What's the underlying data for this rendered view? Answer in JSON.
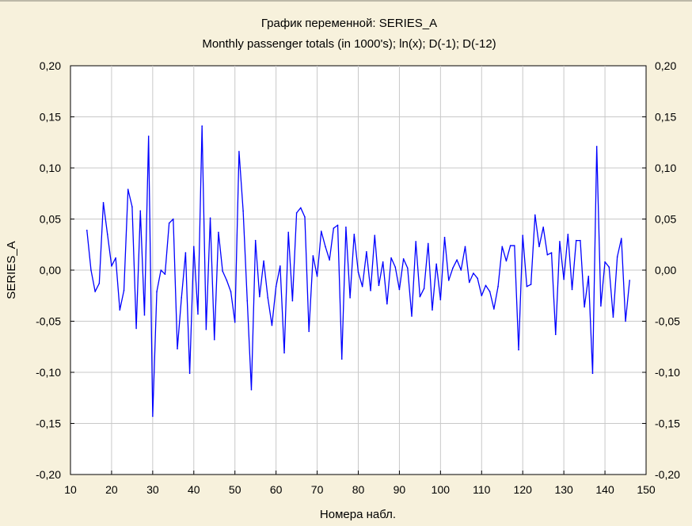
{
  "chart_data": {
    "type": "line",
    "title": "График переменной: SERIES_A",
    "subtitle": "Monthly passenger totals (in 1000's); ln(x); D(-1); D(-12)",
    "xlabel": "Номера набл.",
    "ylabel": "SERIES_A",
    "xlim": [
      10,
      150
    ],
    "ylim": [
      -0.2,
      0.2
    ],
    "x_ticks": [
      "10",
      "20",
      "30",
      "40",
      "50",
      "60",
      "70",
      "80",
      "90",
      "100",
      "110",
      "120",
      "130",
      "140",
      "150"
    ],
    "y_ticks": [
      "0,20",
      "0,15",
      "0,10",
      "0,05",
      "0,00",
      "-0,05",
      "-0,10",
      "-0,15",
      "-0,20"
    ],
    "y_tick_values": [
      0.2,
      0.15,
      0.1,
      0.05,
      0.0,
      -0.05,
      -0.1,
      -0.15,
      -0.2
    ],
    "grid": true,
    "line_color": "#0000ff",
    "background_color": "#ffffff",
    "x_start": 14,
    "series": [
      {
        "values": [
          0.039,
          0.0,
          -0.021,
          -0.013,
          0.066,
          0.035,
          0.004,
          0.012,
          -0.039,
          -0.02,
          0.079,
          0.062,
          -0.057,
          0.058,
          -0.044,
          0.131,
          -0.143,
          -0.021,
          0.0,
          -0.004,
          0.046,
          0.05,
          -0.077,
          -0.027,
          0.017,
          -0.101,
          0.023,
          -0.043,
          0.141,
          -0.058,
          0.051,
          -0.068,
          0.037,
          -0.001,
          -0.01,
          -0.021,
          -0.051,
          0.116,
          0.058,
          -0.03,
          -0.117,
          0.029,
          -0.026,
          0.009,
          -0.027,
          -0.054,
          -0.016,
          0.004,
          -0.081,
          0.037,
          -0.03,
          0.056,
          0.061,
          0.052,
          -0.06,
          0.014,
          -0.006,
          0.038,
          0.023,
          0.01,
          0.041,
          0.044,
          -0.087,
          0.042,
          -0.027,
          0.035,
          -0.002,
          -0.016,
          0.018,
          -0.02,
          0.034,
          -0.015,
          0.008,
          -0.033,
          0.012,
          0.003,
          -0.019,
          0.011,
          0.002,
          -0.045,
          0.028,
          -0.026,
          -0.018,
          0.026,
          -0.039,
          0.006,
          -0.029,
          0.032,
          -0.01,
          0.002,
          0.01,
          0.0,
          0.023,
          -0.012,
          -0.003,
          -0.008,
          -0.025,
          -0.015,
          -0.021,
          -0.038,
          -0.016,
          0.023,
          0.009,
          0.024,
          0.024,
          -0.078,
          0.034,
          -0.016,
          -0.014,
          0.054,
          0.023,
          0.042,
          0.015,
          0.017,
          -0.063,
          0.028,
          -0.009,
          0.035,
          -0.019,
          0.029,
          0.029,
          -0.036,
          -0.006,
          -0.101,
          0.121,
          -0.035,
          0.008,
          0.003,
          -0.046,
          0.013,
          0.031,
          -0.05,
          -0.01
        ]
      }
    ]
  }
}
